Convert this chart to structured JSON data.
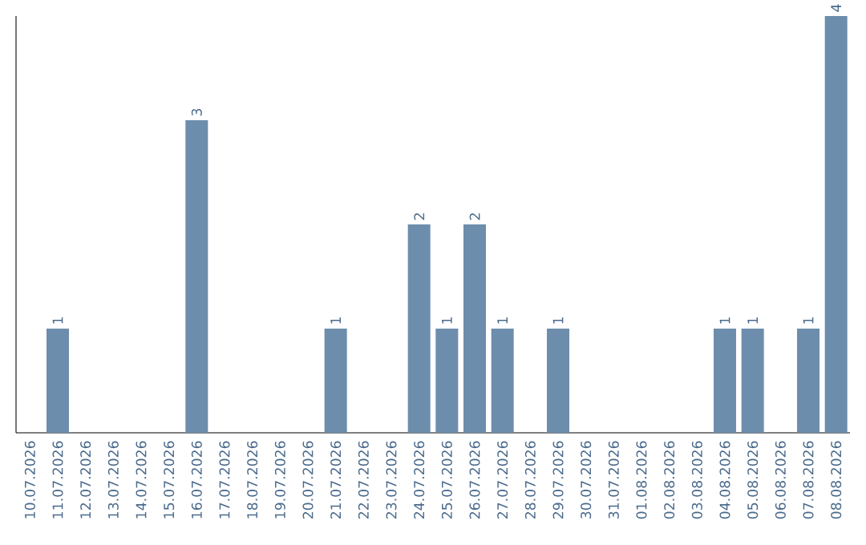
{
  "chart_data": {
    "type": "bar",
    "categories": [
      "10.07.2026",
      "11.07.2026",
      "12.07.2026",
      "13.07.2026",
      "14.07.2026",
      "15.07.2026",
      "16.07.2026",
      "17.07.2026",
      "18.07.2026",
      "19.07.2026",
      "20.07.2026",
      "21.07.2026",
      "22.07.2026",
      "23.07.2026",
      "24.07.2026",
      "25.07.2026",
      "26.07.2026",
      "27.07.2026",
      "28.07.2026",
      "29.07.2026",
      "30.07.2026",
      "31.07.2026",
      "01.08.2026",
      "02.08.2026",
      "03.08.2026",
      "04.08.2026",
      "05.08.2026",
      "06.08.2026",
      "07.08.2026",
      "08.08.2026"
    ],
    "values": [
      0,
      1,
      0,
      0,
      0,
      0,
      3,
      0,
      0,
      0,
      0,
      1,
      0,
      0,
      2,
      1,
      2,
      1,
      0,
      1,
      0,
      0,
      0,
      0,
      0,
      1,
      1,
      0,
      1,
      4
    ],
    "value_labels": [
      null,
      "1",
      null,
      null,
      null,
      null,
      "3",
      null,
      null,
      null,
      null,
      "1",
      null,
      null,
      "2",
      "1",
      "2",
      "1",
      null,
      "1",
      null,
      null,
      null,
      null,
      null,
      "1",
      "1",
      null,
      "1",
      "4"
    ],
    "color": "#6d8dac",
    "ylim": [
      0,
      4
    ]
  }
}
